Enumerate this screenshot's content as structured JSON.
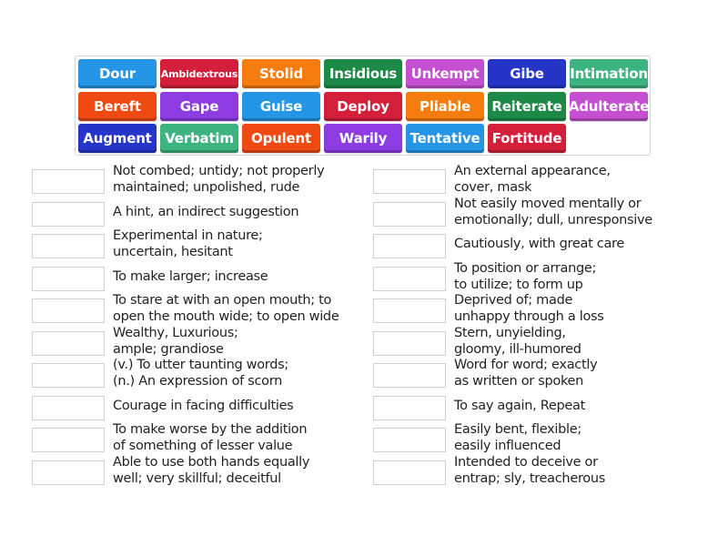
{
  "word_bank": [
    {
      "label": "Dour",
      "color": "#2596e6",
      "row": 0,
      "col": 0
    },
    {
      "label": "Ambidextrous",
      "color": "#d41f3a",
      "row": 0,
      "col": 1,
      "small": true
    },
    {
      "label": "Stolid",
      "color": "#f57c0f",
      "row": 0,
      "col": 2
    },
    {
      "label": "Insidious",
      "color": "#1c8a46",
      "row": 0,
      "col": 3
    },
    {
      "label": "Unkempt",
      "color": "#c54fd1",
      "row": 0,
      "col": 4
    },
    {
      "label": "Gibe",
      "color": "#2435c8",
      "row": 0,
      "col": 5
    },
    {
      "label": "Intimation",
      "color": "#3db37f",
      "row": 0,
      "col": 6
    },
    {
      "label": "Bereft",
      "color": "#ef4a12",
      "row": 1,
      "col": 0
    },
    {
      "label": "Gape",
      "color": "#8c3ce0",
      "row": 1,
      "col": 1
    },
    {
      "label": "Guise",
      "color": "#2596e6",
      "row": 1,
      "col": 2
    },
    {
      "label": "Deploy",
      "color": "#d41f3a",
      "row": 1,
      "col": 3
    },
    {
      "label": "Pliable",
      "color": "#f57c0f",
      "row": 1,
      "col": 4
    },
    {
      "label": "Reiterate",
      "color": "#1c8a46",
      "row": 1,
      "col": 5
    },
    {
      "label": "Adulterate",
      "color": "#c54fd1",
      "row": 1,
      "col": 6
    },
    {
      "label": "Augment",
      "color": "#2435c8",
      "row": 2,
      "col": 0
    },
    {
      "label": "Verbatim",
      "color": "#3db37f",
      "row": 2,
      "col": 1
    },
    {
      "label": "Opulent",
      "color": "#ef4a12",
      "row": 2,
      "col": 2
    },
    {
      "label": "Warily",
      "color": "#8c3ce0",
      "row": 2,
      "col": 3
    },
    {
      "label": "Tentative",
      "color": "#2596e6",
      "row": 2,
      "col": 4
    },
    {
      "label": "Fortitude",
      "color": "#d41f3a",
      "row": 2,
      "col": 5
    }
  ],
  "definitions_left": [
    {
      "line1": "Not combed; untidy; not properly",
      "line2": "maintained; unpolished, rude"
    },
    {
      "line1": "A hint, an indirect suggestion",
      "line2": ""
    },
    {
      "line1": "Experimental in nature;",
      "line2": "uncertain, hesitant"
    },
    {
      "line1": "To make larger; increase",
      "line2": ""
    },
    {
      "line1": "To stare at with an open mouth; to",
      "line2": "open the mouth wide; to open wide"
    },
    {
      "line1": "Wealthy, Luxurious;",
      "line2": "ample; grandiose"
    },
    {
      "line1": "(v.) To utter taunting words;",
      "line2": "(n.) An expression of scorn"
    },
    {
      "line1": "Courage in facing difficulties",
      "line2": ""
    },
    {
      "line1": "To make worse by the addition",
      "line2": "of something of lesser value"
    },
    {
      "line1": "Able to use both hands equally",
      "line2": "well; very skillful; deceitful"
    }
  ],
  "definitions_right": [
    {
      "line1": "An external appearance,",
      "line2": "cover, mask"
    },
    {
      "line1": "Not easily moved mentally or",
      "line2": "emotionally; dull, unresponsive"
    },
    {
      "line1": "Cautiously, with great care",
      "line2": ""
    },
    {
      "line1": "To position or arrange;",
      "line2": "to utilize; to form up"
    },
    {
      "line1": "Deprived of; made",
      "line2": "unhappy through a loss"
    },
    {
      "line1": "Stern, unyielding,",
      "line2": "gloomy, ill-humored"
    },
    {
      "line1": "Word for word; exactly",
      "line2": "as written or spoken"
    },
    {
      "line1": "To say again, Repeat",
      "line2": ""
    },
    {
      "line1": "Easily bent, flexible;",
      "line2": "easily influenced"
    },
    {
      "line1": "Intended to deceive or",
      "line2": "entrap; sly, treacherous"
    }
  ]
}
